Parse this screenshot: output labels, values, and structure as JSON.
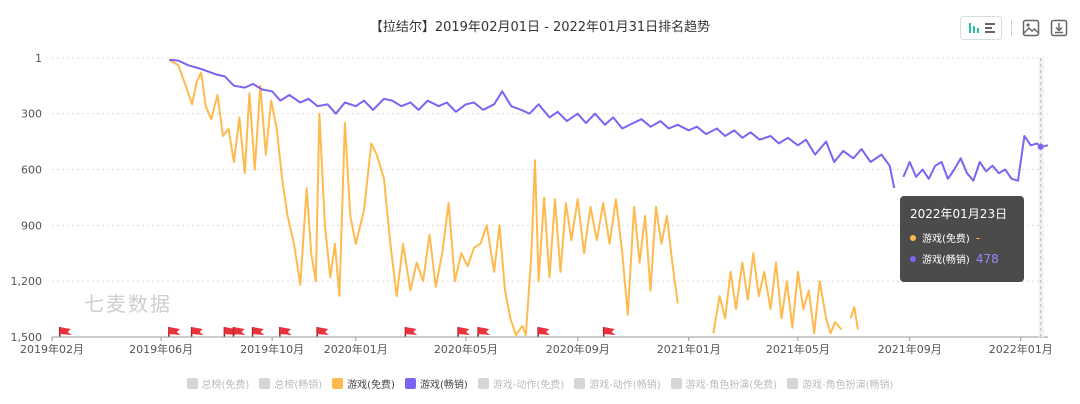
{
  "title": "【拉结尔】2019年02月01日 - 2022年01月31日排名趋势",
  "watermark": "七麦数据",
  "toolbar": {
    "icons": [
      "bar-chart-icon",
      "list-icon",
      "image-icon",
      "download-icon"
    ]
  },
  "tooltip": {
    "date": "2022年01月23日",
    "rows": [
      {
        "label": "游戏(免费)",
        "value": "-",
        "color": "#FFBA4F"
      },
      {
        "label": "游戏(畅销)",
        "value": "478",
        "color": "#7E63F2"
      }
    ]
  },
  "legend": [
    {
      "label": "总榜(免费)",
      "color": "#d6d6d6",
      "active": false
    },
    {
      "label": "总榜(畅销)",
      "color": "#d6d6d6",
      "active": false
    },
    {
      "label": "游戏(免费)",
      "color": "#FFBA4F",
      "active": true
    },
    {
      "label": "游戏(畅销)",
      "color": "#7E63F2",
      "active": true
    },
    {
      "label": "游戏-动作(免费)",
      "color": "#d6d6d6",
      "active": false
    },
    {
      "label": "游戏-动作(畅销)",
      "color": "#d6d6d6",
      "active": false
    },
    {
      "label": "游戏-角色扮演(免费)",
      "color": "#d6d6d6",
      "active": false
    },
    {
      "label": "游戏-角色扮演(畅销)",
      "color": "#d6d6d6",
      "active": false
    }
  ],
  "chart_data": {
    "type": "line",
    "title": "【拉结尔】2019年02月01日 - 2022年01月31日排名趋势",
    "x_start": "2019-02-01",
    "x_end": "2022-01-31",
    "x_ticks": [
      "2019年02月",
      "2019年06月",
      "2019年10月",
      "2020年01月",
      "2020年05月",
      "2020年09月",
      "2021年01月",
      "2021年05月",
      "2021年09月",
      "2022年01月"
    ],
    "x_tick_dates": [
      "2019-02-01",
      "2019-06-01",
      "2019-10-01",
      "2020-01-01",
      "2020-05-01",
      "2020-09-01",
      "2021-01-01",
      "2021-05-01",
      "2021-09-01",
      "2022-01-01"
    ],
    "y_ticks": [
      "1",
      "300",
      "600",
      "900",
      "1,200",
      "1,500"
    ],
    "y_tick_values": [
      1,
      300,
      600,
      900,
      1200,
      1500
    ],
    "ylim": [
      1,
      1500
    ],
    "y_inverted": true,
    "grid": true,
    "legend_position": "bottom",
    "series": [
      {
        "name": "游戏(免费)",
        "color": "#FFBA4F",
        "points": [
          [
            "2019-06-10",
            12
          ],
          [
            "2019-06-20",
            40
          ],
          [
            "2019-06-28",
            150
          ],
          [
            "2019-07-05",
            250
          ],
          [
            "2019-07-10",
            130
          ],
          [
            "2019-07-15",
            80
          ],
          [
            "2019-07-20",
            260
          ],
          [
            "2019-07-26",
            330
          ],
          [
            "2019-08-02",
            200
          ],
          [
            "2019-08-08",
            420
          ],
          [
            "2019-08-14",
            380
          ],
          [
            "2019-08-20",
            560
          ],
          [
            "2019-08-26",
            320
          ],
          [
            "2019-09-01",
            620
          ],
          [
            "2019-09-06",
            190
          ],
          [
            "2019-09-12",
            600
          ],
          [
            "2019-09-18",
            150
          ],
          [
            "2019-09-24",
            520
          ],
          [
            "2019-09-30",
            230
          ],
          [
            "2019-10-06",
            380
          ],
          [
            "2019-10-12",
            650
          ],
          [
            "2019-10-18",
            850
          ],
          [
            "2019-10-25",
            1000
          ],
          [
            "2019-11-01",
            1220
          ],
          [
            "2019-11-08",
            700
          ],
          [
            "2019-11-13",
            1050
          ],
          [
            "2019-11-18",
            1200
          ],
          [
            "2019-11-22",
            300
          ],
          [
            "2019-11-28",
            900
          ],
          [
            "2019-12-04",
            1180
          ],
          [
            "2019-12-09",
            1000
          ],
          [
            "2019-12-14",
            1280
          ],
          [
            "2019-12-20",
            350
          ],
          [
            "2019-12-26",
            850
          ],
          [
            "2020-01-01",
            1000
          ],
          [
            "2020-01-10",
            820
          ],
          [
            "2020-01-18",
            460
          ],
          [
            "2020-01-24",
            520
          ],
          [
            "2020-02-01",
            650
          ],
          [
            "2020-02-08",
            1000
          ],
          [
            "2020-02-15",
            1280
          ],
          [
            "2020-02-22",
            1000
          ],
          [
            "2020-03-01",
            1250
          ],
          [
            "2020-03-08",
            1100
          ],
          [
            "2020-03-15",
            1200
          ],
          [
            "2020-03-22",
            950
          ],
          [
            "2020-03-29",
            1230
          ],
          [
            "2020-04-05",
            1050
          ],
          [
            "2020-04-12",
            780
          ],
          [
            "2020-04-19",
            1200
          ],
          [
            "2020-04-26",
            1050
          ],
          [
            "2020-05-03",
            1120
          ],
          [
            "2020-05-10",
            1020
          ],
          [
            "2020-05-17",
            1000
          ],
          [
            "2020-05-24",
            900
          ],
          [
            "2020-06-01",
            1150
          ],
          [
            "2020-06-07",
            900
          ],
          [
            "2020-06-13",
            1250
          ],
          [
            "2020-06-19",
            1400
          ],
          [
            "2020-06-25",
            1490
          ],
          [
            "2020-07-02",
            1440
          ],
          [
            "2020-07-06",
            1490
          ],
          [
            "2020-07-12",
            1050
          ],
          [
            "2020-07-16",
            550
          ],
          [
            "2020-07-20",
            1200
          ],
          [
            "2020-07-26",
            750
          ],
          [
            "2020-08-01",
            1180
          ],
          [
            "2020-08-07",
            760
          ],
          [
            "2020-08-13",
            1150
          ],
          [
            "2020-08-19",
            780
          ],
          [
            "2020-08-25",
            980
          ],
          [
            "2020-09-01",
            760
          ],
          [
            "2020-09-08",
            1050
          ],
          [
            "2020-09-15",
            800
          ],
          [
            "2020-09-22",
            980
          ],
          [
            "2020-09-29",
            780
          ],
          [
            "2020-10-06",
            1000
          ],
          [
            "2020-10-13",
            760
          ],
          [
            "2020-10-20",
            1050
          ],
          [
            "2020-10-26",
            1380
          ],
          [
            "2020-11-02",
            800
          ],
          [
            "2020-11-08",
            1100
          ],
          [
            "2020-11-14",
            850
          ],
          [
            "2020-11-20",
            1250
          ],
          [
            "2020-11-26",
            800
          ],
          [
            "2020-12-02",
            1000
          ],
          [
            "2020-12-08",
            850
          ],
          [
            "2020-12-14",
            1100
          ],
          [
            "2020-12-20",
            1320
          ]
        ]
      },
      {
        "name": "游戏(免费)",
        "color": "#FFBA4F",
        "points": [
          [
            "2021-01-28",
            1480
          ],
          [
            "2021-02-04",
            1280
          ],
          [
            "2021-02-10",
            1400
          ],
          [
            "2021-02-16",
            1150
          ],
          [
            "2021-02-22",
            1350
          ],
          [
            "2021-03-01",
            1100
          ],
          [
            "2021-03-07",
            1300
          ],
          [
            "2021-03-13",
            1050
          ],
          [
            "2021-03-19",
            1280
          ],
          [
            "2021-03-25",
            1150
          ],
          [
            "2021-04-01",
            1350
          ],
          [
            "2021-04-07",
            1100
          ],
          [
            "2021-04-13",
            1400
          ],
          [
            "2021-04-19",
            1200
          ],
          [
            "2021-04-25",
            1450
          ],
          [
            "2021-05-01",
            1150
          ],
          [
            "2021-05-07",
            1350
          ],
          [
            "2021-05-13",
            1250
          ],
          [
            "2021-05-19",
            1480
          ],
          [
            "2021-05-25",
            1200
          ],
          [
            "2021-06-01",
            1400
          ],
          [
            "2021-06-06",
            1480
          ],
          [
            "2021-06-11",
            1420
          ],
          [
            "2021-06-18",
            1460
          ]
        ]
      },
      {
        "name": "游戏(免费)",
        "color": "#FFBA4F",
        "points": [
          [
            "2021-06-28",
            1400
          ],
          [
            "2021-07-02",
            1340
          ],
          [
            "2021-07-06",
            1460
          ]
        ]
      },
      {
        "name": "游戏(畅销)",
        "color": "#7E63F2",
        "points": [
          [
            "2019-06-10",
            10
          ],
          [
            "2019-06-20",
            15
          ],
          [
            "2019-07-01",
            40
          ],
          [
            "2019-07-15",
            60
          ],
          [
            "2019-08-01",
            90
          ],
          [
            "2019-08-10",
            100
          ],
          [
            "2019-08-20",
            150
          ],
          [
            "2019-09-01",
            160
          ],
          [
            "2019-09-10",
            140
          ],
          [
            "2019-09-20",
            170
          ],
          [
            "2019-10-01",
            180
          ],
          [
            "2019-10-10",
            230
          ],
          [
            "2019-10-20",
            200
          ],
          [
            "2019-11-01",
            240
          ],
          [
            "2019-11-10",
            220
          ],
          [
            "2019-11-20",
            260
          ],
          [
            "2019-12-01",
            250
          ],
          [
            "2019-12-10",
            300
          ],
          [
            "2019-12-20",
            240
          ],
          [
            "2020-01-01",
            260
          ],
          [
            "2020-01-10",
            230
          ],
          [
            "2020-01-20",
            280
          ],
          [
            "2020-02-01",
            220
          ],
          [
            "2020-02-10",
            230
          ],
          [
            "2020-02-20",
            260
          ],
          [
            "2020-03-01",
            240
          ],
          [
            "2020-03-10",
            280
          ],
          [
            "2020-03-20",
            230
          ],
          [
            "2020-04-01",
            260
          ],
          [
            "2020-04-10",
            240
          ],
          [
            "2020-04-20",
            290
          ],
          [
            "2020-05-01",
            250
          ],
          [
            "2020-05-10",
            240
          ],
          [
            "2020-05-20",
            280
          ],
          [
            "2020-06-01",
            250
          ],
          [
            "2020-06-10",
            180
          ],
          [
            "2020-06-20",
            260
          ],
          [
            "2020-07-01",
            280
          ],
          [
            "2020-07-10",
            300
          ],
          [
            "2020-07-20",
            250
          ],
          [
            "2020-08-01",
            320
          ],
          [
            "2020-08-10",
            290
          ],
          [
            "2020-08-20",
            340
          ],
          [
            "2020-09-01",
            300
          ],
          [
            "2020-09-10",
            350
          ],
          [
            "2020-09-20",
            300
          ],
          [
            "2020-10-01",
            360
          ],
          [
            "2020-10-10",
            320
          ],
          [
            "2020-10-20",
            380
          ],
          [
            "2020-11-01",
            350
          ],
          [
            "2020-11-10",
            330
          ],
          [
            "2020-11-20",
            370
          ],
          [
            "2020-12-01",
            340
          ],
          [
            "2020-12-10",
            380
          ],
          [
            "2020-12-20",
            360
          ],
          [
            "2021-01-01",
            390
          ],
          [
            "2021-01-10",
            370
          ],
          [
            "2021-01-20",
            410
          ],
          [
            "2021-02-01",
            380
          ],
          [
            "2021-02-10",
            420
          ],
          [
            "2021-02-20",
            390
          ],
          [
            "2021-03-01",
            430
          ],
          [
            "2021-03-10",
            400
          ],
          [
            "2021-03-20",
            440
          ],
          [
            "2021-04-01",
            420
          ],
          [
            "2021-04-10",
            460
          ],
          [
            "2021-04-20",
            430
          ],
          [
            "2021-05-01",
            470
          ],
          [
            "2021-05-10",
            440
          ],
          [
            "2021-05-20",
            520
          ],
          [
            "2021-06-01",
            450
          ],
          [
            "2021-06-10",
            560
          ],
          [
            "2021-06-20",
            500
          ],
          [
            "2021-07-01",
            540
          ],
          [
            "2021-07-10",
            490
          ],
          [
            "2021-07-20",
            560
          ],
          [
            "2021-08-01",
            520
          ],
          [
            "2021-08-10",
            580
          ],
          [
            "2021-08-15",
            700
          ]
        ]
      },
      {
        "name": "游戏(畅销)",
        "color": "#7E63F2",
        "points": [
          [
            "2021-08-25",
            640
          ],
          [
            "2021-09-01",
            560
          ],
          [
            "2021-09-08",
            640
          ],
          [
            "2021-09-15",
            600
          ],
          [
            "2021-09-22",
            650
          ],
          [
            "2021-09-29",
            580
          ],
          [
            "2021-10-06",
            560
          ],
          [
            "2021-10-13",
            650
          ],
          [
            "2021-10-20",
            600
          ],
          [
            "2021-10-27",
            540
          ],
          [
            "2021-11-03",
            620
          ],
          [
            "2021-11-10",
            660
          ],
          [
            "2021-11-17",
            560
          ],
          [
            "2021-11-24",
            610
          ],
          [
            "2021-12-01",
            580
          ],
          [
            "2021-12-08",
            620
          ],
          [
            "2021-12-15",
            600
          ],
          [
            "2021-12-22",
            650
          ],
          [
            "2021-12-29",
            660
          ],
          [
            "2022-01-05",
            420
          ],
          [
            "2022-01-12",
            470
          ],
          [
            "2022-01-19",
            460
          ],
          [
            "2022-01-23",
            478
          ],
          [
            "2022-01-31",
            470
          ]
        ]
      }
    ],
    "event_flags": [
      "2019-02-15",
      "2019-06-15",
      "2019-07-10",
      "2019-08-15",
      "2019-08-25",
      "2019-09-15",
      "2019-10-15",
      "2019-11-25",
      "2020-03-01",
      "2020-04-28",
      "2020-05-20",
      "2020-07-25",
      "2020-10-05"
    ],
    "flag_color": "#E8323C"
  }
}
